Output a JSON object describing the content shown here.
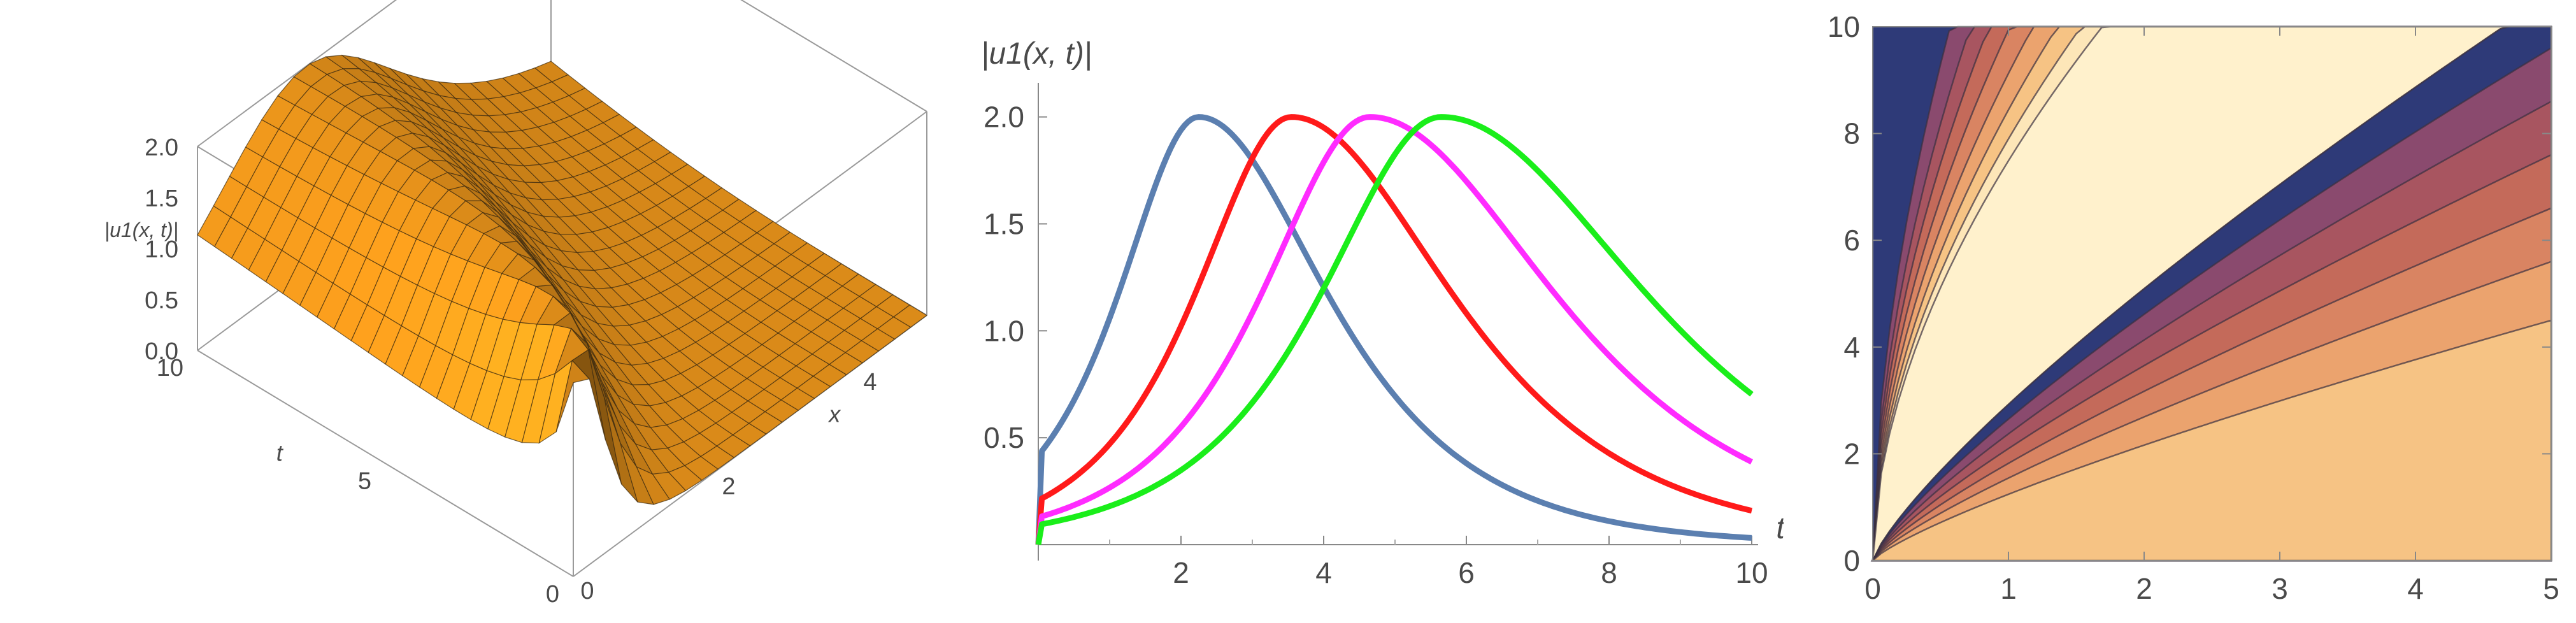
{
  "chart_data": [
    {
      "type": "surface3d",
      "zlabel": "|u1(x, t)|",
      "xlabel": "x",
      "ylabel": "t",
      "z_ticks": [
        "0.0",
        "0.5",
        "1.0",
        "1.5",
        "2.0"
      ],
      "x_ticks": [
        "0",
        "2",
        "4"
      ],
      "t_ticks": [
        "0",
        "5",
        "10"
      ],
      "xlim": [
        0,
        5
      ],
      "tlim": [
        0,
        10
      ],
      "zlim": [
        0,
        2
      ],
      "surface_color": "#f39a1c"
    },
    {
      "type": "line",
      "ylabel": "|u1(x, t)|",
      "xlabel": "t",
      "xlim": [
        0,
        10
      ],
      "ylim": [
        0,
        2.1
      ],
      "x_ticks": [
        "2",
        "4",
        "6",
        "8",
        "10"
      ],
      "y_ticks": [
        "0.5",
        "1.0",
        "1.5",
        "2.0"
      ],
      "series": [
        {
          "color": "#5b7fb0",
          "peak_t": 2.25,
          "left_width": 1.0,
          "right_width": 1.6,
          "tail": 0.25,
          "peak": 2.0
        },
        {
          "color": "#ff1a1a",
          "peak_t": 3.55,
          "left_width": 1.2,
          "right_width": 2.0,
          "tail": 0.3,
          "peak": 2.0
        },
        {
          "color": "#ff2bff",
          "peak_t": 4.65,
          "left_width": 1.35,
          "right_width": 2.3,
          "tail": 0.4,
          "peak": 2.0
        },
        {
          "color": "#1aee1a",
          "peak_t": 5.65,
          "left_width": 1.5,
          "right_width": 2.55,
          "tail": 0.5,
          "peak": 2.0
        }
      ]
    },
    {
      "type": "contour",
      "xlim": [
        0,
        5
      ],
      "ylim": [
        0,
        10
      ],
      "x_ticks": [
        "0",
        "1",
        "2",
        "3",
        "4",
        "5"
      ],
      "y_ticks": [
        "0",
        "2",
        "4",
        "6",
        "8",
        "10"
      ],
      "background_color": "#2e3a78",
      "level_colors": [
        "#8a4a6e",
        "#a85560",
        "#c46a5a",
        "#d98462",
        "#eba36e",
        "#f6c384",
        "#fde6b8",
        "#fff1cc"
      ]
    }
  ]
}
